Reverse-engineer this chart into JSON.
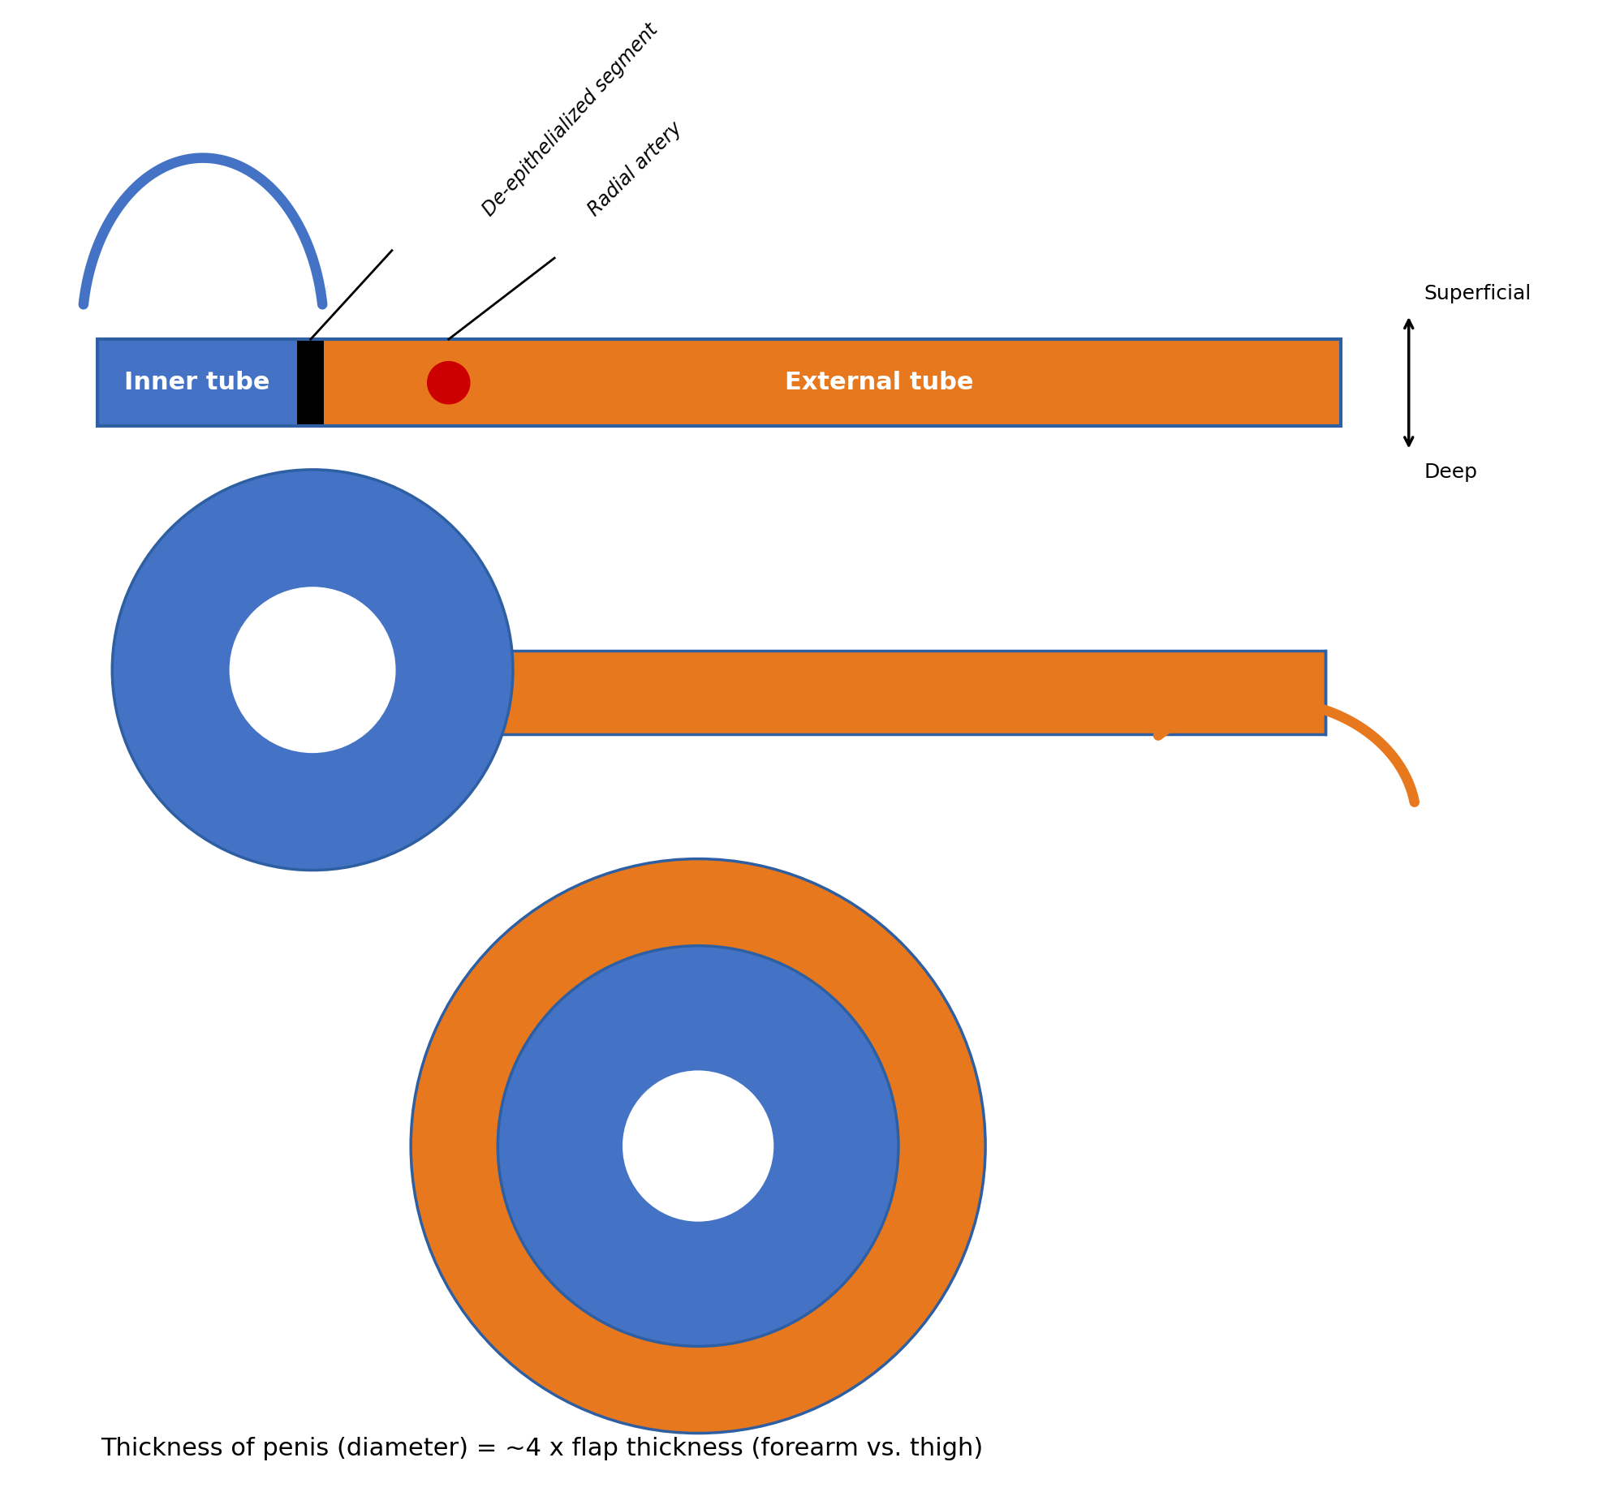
{
  "orange_color": "#E8781E",
  "blue_color": "#4472C4",
  "dark_blue_color": "#2E5FA3",
  "red_color": "#CC0000",
  "black_color": "#000000",
  "white_color": "#FFFFFF",
  "bg_color": "#FFFFFF",
  "title_text": "Thickness of penis (diameter) = ~4 x flap thickness (forearm vs. thigh)",
  "inner_tube_label": "Inner tube",
  "external_tube_label": "External tube",
  "de_epithelialized_label": "De-epithelialized segment",
  "radial_artery_label": "Radial artery",
  "superficial_label": "Superficial",
  "deep_label": "Deep",
  "tube_label_fontsize": 22,
  "annot_fontsize": 17,
  "side_label_fontsize": 18,
  "title_fontsize": 22
}
